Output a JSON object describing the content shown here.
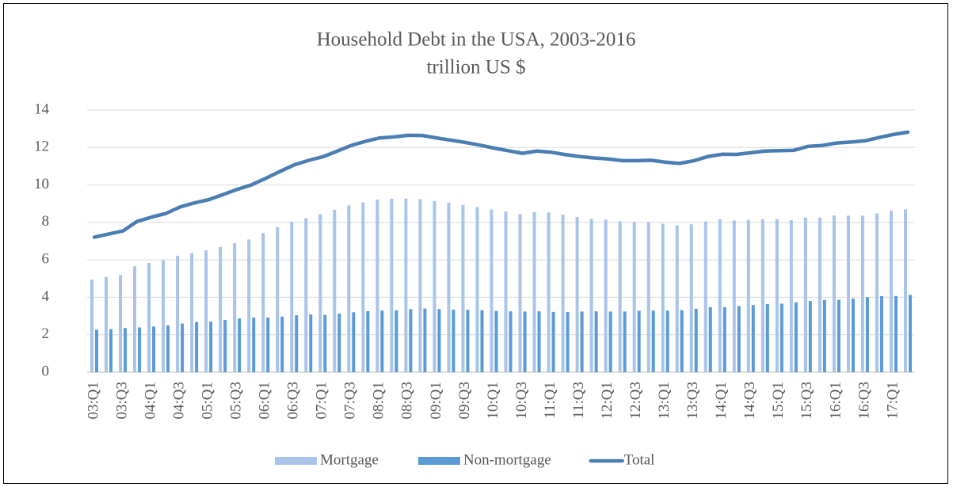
{
  "chart_data": {
    "type": "bar_line",
    "title": "Household Debt in the USA, 2003-2016",
    "subtitle": "trillion US $",
    "categories": [
      "03:Q1",
      null,
      "03:Q3",
      null,
      "04:Q1",
      null,
      "04:Q3",
      null,
      "05:Q1",
      null,
      "05:Q3",
      null,
      "06:Q1",
      null,
      "06:Q3",
      null,
      "07:Q1",
      null,
      "07:Q3",
      null,
      "08:Q1",
      null,
      "08:Q3",
      null,
      "09:Q1",
      null,
      "09:Q3",
      null,
      "10:Q1",
      null,
      "10:Q3",
      null,
      "11:Q1",
      null,
      "11:Q3",
      null,
      "12:Q1",
      null,
      "12:Q3",
      null,
      "13:Q1",
      null,
      "13:Q3",
      null,
      "14:Q1",
      null,
      "14:Q3",
      null,
      "15:Q1",
      null,
      "15:Q3",
      null,
      "16:Q1",
      null,
      "16:Q3",
      null,
      "17:Q1",
      null
    ],
    "series": [
      {
        "name": "Mortgage",
        "color": "#a9c4eb",
        "kind": "bar",
        "values": [
          4.94,
          5.08,
          5.18,
          5.66,
          5.84,
          5.97,
          6.22,
          6.36,
          6.51,
          6.69,
          6.89,
          7.09,
          7.43,
          7.75,
          8.03,
          8.23,
          8.44,
          8.67,
          8.91,
          9.07,
          9.22,
          9.26,
          9.28,
          9.24,
          9.14,
          9.05,
          8.94,
          8.82,
          8.7,
          8.58,
          8.45,
          8.56,
          8.53,
          8.41,
          8.28,
          8.19,
          8.15,
          8.06,
          8.02,
          8.03,
          7.93,
          7.84,
          7.9,
          8.05,
          8.17,
          8.1,
          8.13,
          8.17,
          8.17,
          8.12,
          8.26,
          8.25,
          8.37,
          8.36,
          8.36,
          8.48,
          8.63,
          8.69
        ]
      },
      {
        "name": "Non-mortgage",
        "color": "#5b9bd5",
        "kind": "bar",
        "values": [
          2.27,
          2.3,
          2.36,
          2.39,
          2.44,
          2.5,
          2.6,
          2.68,
          2.7,
          2.79,
          2.87,
          2.91,
          2.92,
          2.97,
          3.04,
          3.08,
          3.06,
          3.13,
          3.2,
          3.26,
          3.29,
          3.31,
          3.37,
          3.4,
          3.37,
          3.34,
          3.33,
          3.31,
          3.27,
          3.25,
          3.24,
          3.25,
          3.22,
          3.21,
          3.24,
          3.25,
          3.24,
          3.24,
          3.28,
          3.29,
          3.29,
          3.31,
          3.39,
          3.47,
          3.47,
          3.53,
          3.59,
          3.64,
          3.66,
          3.73,
          3.8,
          3.86,
          3.87,
          3.93,
          4.0,
          4.06,
          4.07,
          4.13
        ]
      },
      {
        "name": "Total",
        "color": "#4a7eb3",
        "kind": "line",
        "values": [
          7.21,
          7.38,
          7.54,
          8.05,
          8.28,
          8.47,
          8.82,
          9.04,
          9.21,
          9.48,
          9.76,
          10.0,
          10.35,
          10.72,
          11.07,
          11.31,
          11.5,
          11.8,
          12.11,
          12.33,
          12.51,
          12.57,
          12.65,
          12.64,
          12.51,
          12.39,
          12.27,
          12.13,
          11.97,
          11.83,
          11.69,
          11.81,
          11.75,
          11.62,
          11.52,
          11.44,
          11.39,
          11.3,
          11.3,
          11.32,
          11.22,
          11.15,
          11.29,
          11.52,
          11.64,
          11.63,
          11.72,
          11.81,
          11.83,
          11.85,
          12.06,
          12.11,
          12.24,
          12.29,
          12.36,
          12.54,
          12.7,
          12.82
        ]
      }
    ],
    "ylim": [
      0,
      14
    ],
    "yticks": [
      0,
      2,
      4,
      6,
      8,
      10,
      12,
      14
    ],
    "grid": true,
    "legend": "bottom"
  }
}
